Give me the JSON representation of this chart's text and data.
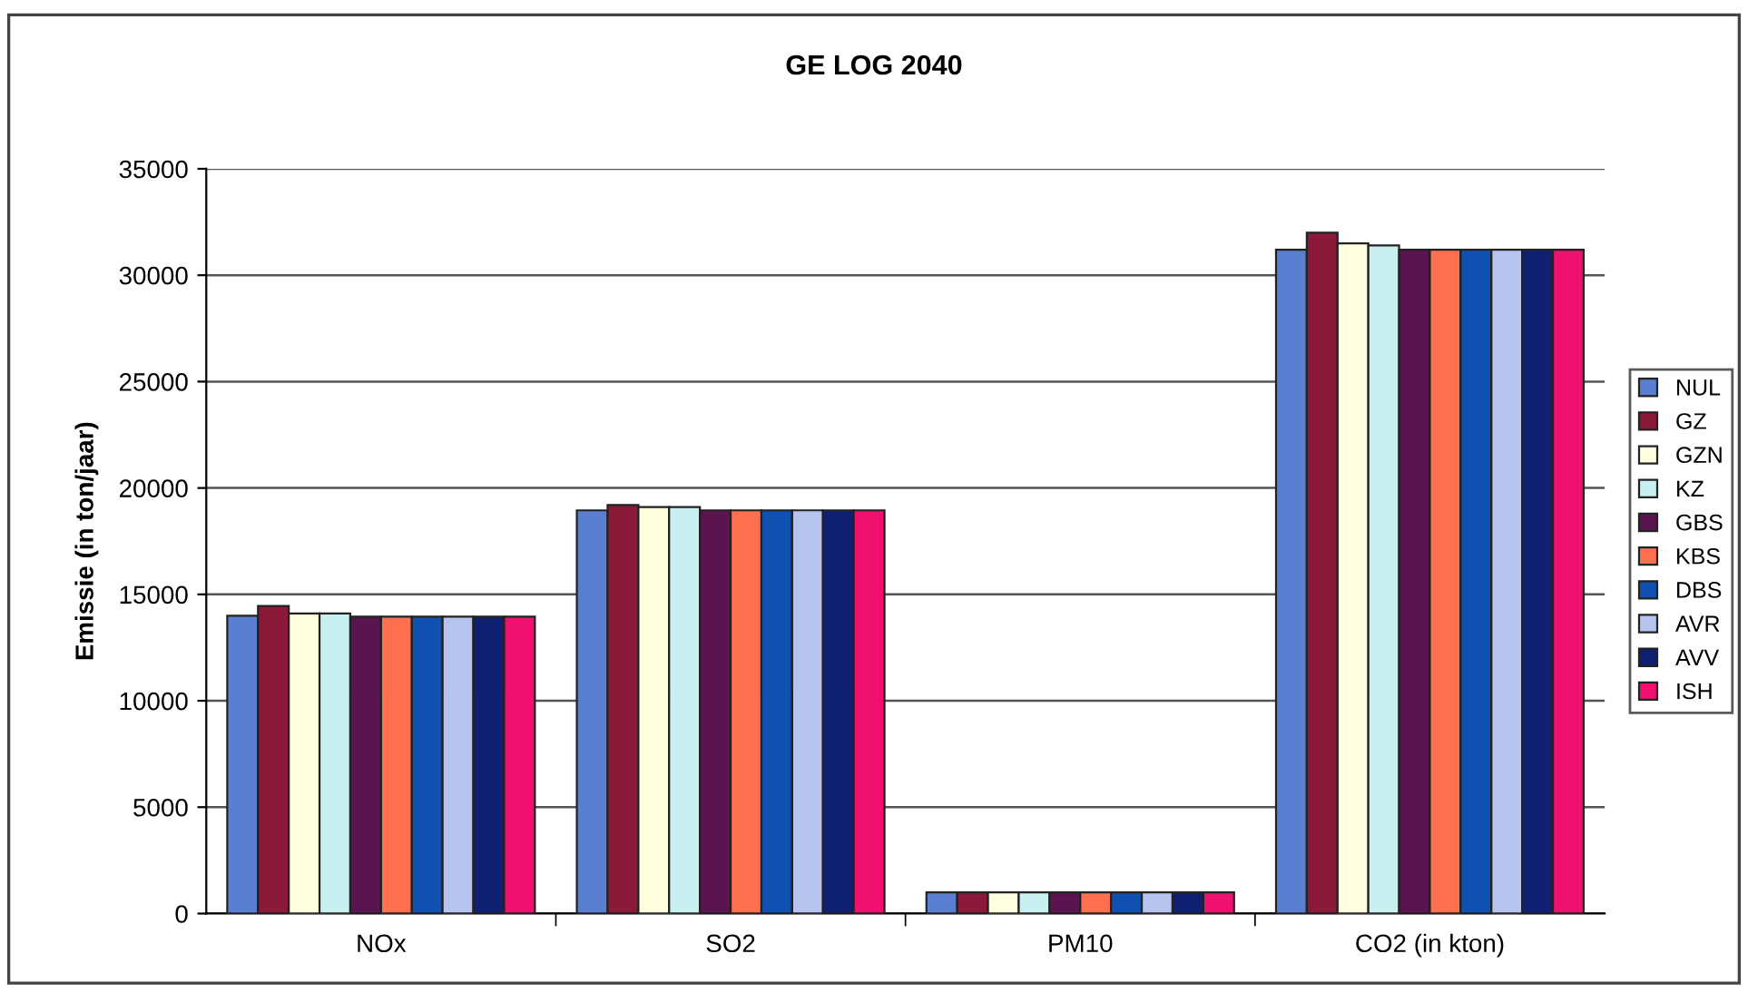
{
  "chart_data": {
    "type": "bar",
    "title": "GE LOG 2040",
    "ylabel": "Emissie (in ton/jaar)",
    "categories": [
      "NOx",
      "SO2",
      "PM10",
      "CO2 (in kton)"
    ],
    "series": [
      {
        "name": "NUL",
        "color": "#5a7fd0",
        "values": [
          14000,
          18950,
          1000,
          31200
        ]
      },
      {
        "name": "GZ",
        "color": "#8b1a3a",
        "values": [
          14450,
          19200,
          1000,
          32000
        ]
      },
      {
        "name": "GZN",
        "color": "#ffffe0",
        "values": [
          14100,
          19100,
          1000,
          31500
        ]
      },
      {
        "name": "KZ",
        "color": "#c8f0f0",
        "values": [
          14100,
          19100,
          1000,
          31400
        ]
      },
      {
        "name": "GBS",
        "color": "#5a1450",
        "values": [
          13950,
          18950,
          1000,
          31200
        ]
      },
      {
        "name": "KBS",
        "color": "#ff7050",
        "values": [
          13950,
          18950,
          1000,
          31200
        ]
      },
      {
        "name": "DBS",
        "color": "#1050b0",
        "values": [
          13950,
          18950,
          1000,
          31200
        ]
      },
      {
        "name": "AVR",
        "color": "#b8c4f0",
        "values": [
          13950,
          18950,
          1000,
          31200
        ]
      },
      {
        "name": "AVV",
        "color": "#102070",
        "values": [
          13950,
          18950,
          1000,
          31200
        ]
      },
      {
        "name": "ISH",
        "color": "#f01070",
        "values": [
          13950,
          18950,
          1000,
          31200
        ]
      }
    ],
    "ylim": [
      0,
      35000
    ],
    "yticks": [
      0,
      5000,
      10000,
      15000,
      20000,
      25000,
      30000,
      35000
    ],
    "grid": "y",
    "legend": "right"
  }
}
